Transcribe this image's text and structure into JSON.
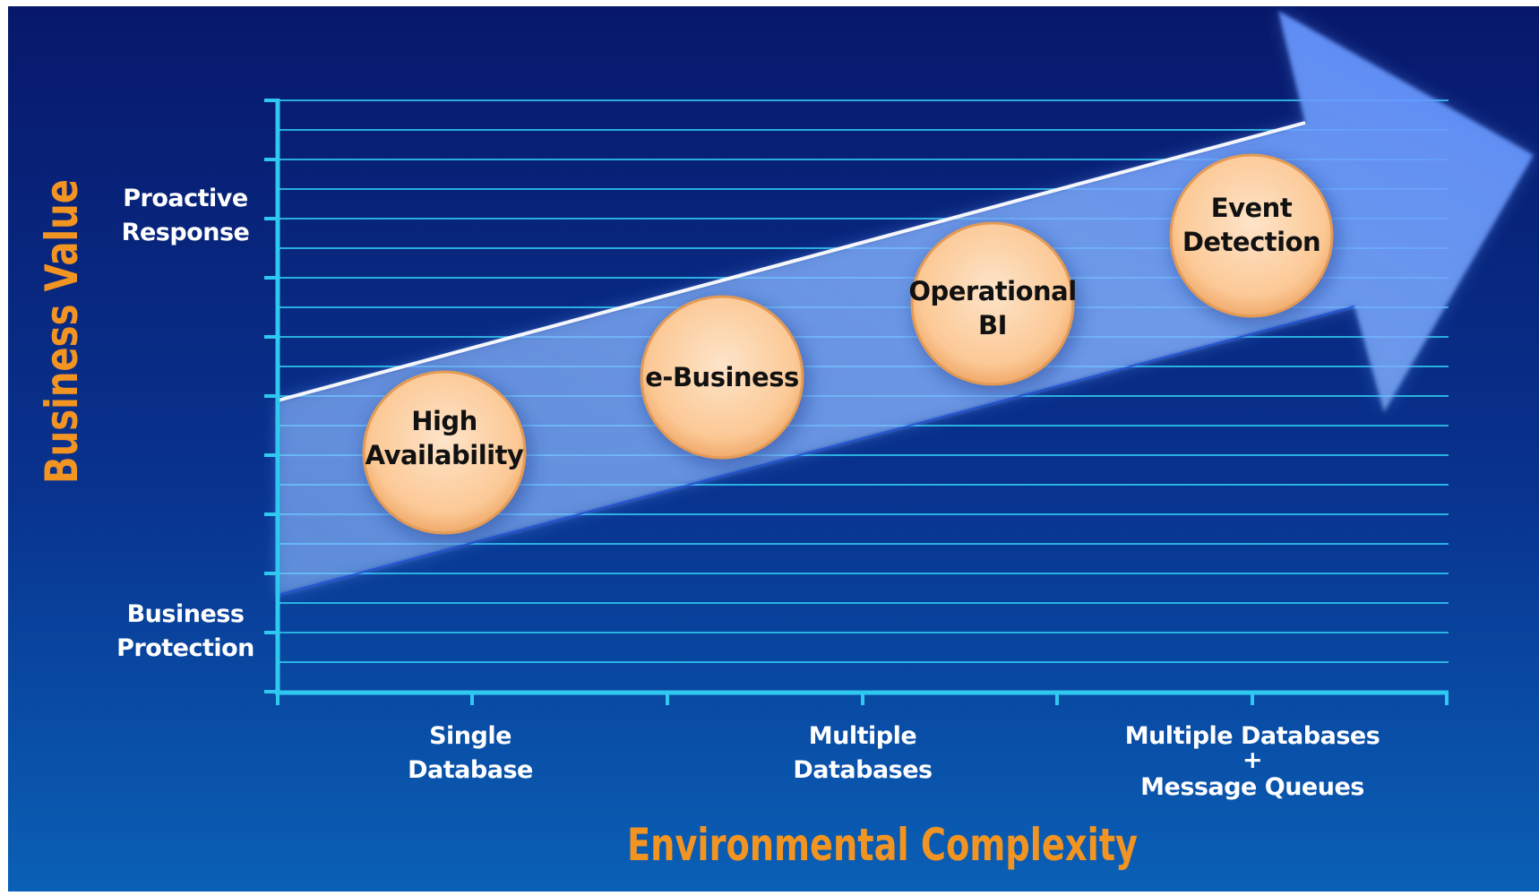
{
  "axes": {
    "y_title": "Business Value",
    "x_title": "Environmental Complexity",
    "y_labels": [
      {
        "key": "top",
        "lines": [
          "Proactive",
          "Response"
        ]
      },
      {
        "key": "bottom",
        "lines": [
          "Business",
          "Protection"
        ]
      }
    ],
    "x_labels": [
      {
        "key": "single",
        "lines": [
          "Single",
          "Database"
        ]
      },
      {
        "key": "multiple",
        "lines": [
          "Multiple",
          "Databases"
        ]
      },
      {
        "key": "multiple-mq",
        "lines": [
          "Multiple Databases",
          "+",
          "Message Queues"
        ]
      }
    ]
  },
  "stages": [
    {
      "key": "high-availability",
      "lines": [
        "High",
        "Availability"
      ]
    },
    {
      "key": "e-business",
      "lines": [
        "e-Business"
      ]
    },
    {
      "key": "operational-bi",
      "lines": [
        "Operational",
        "BI"
      ]
    },
    {
      "key": "event-detection",
      "lines": [
        "Event",
        "Detection"
      ]
    }
  ],
  "colors": {
    "background_top": "#07186b",
    "background_bottom": "#0a5fb4",
    "grid": "#2ec8f0",
    "axis_title": "#f29422",
    "bubble_fill": "#fcd0a5",
    "bubble_edge": "#e0964e",
    "arrow": "#7fb0ff"
  }
}
